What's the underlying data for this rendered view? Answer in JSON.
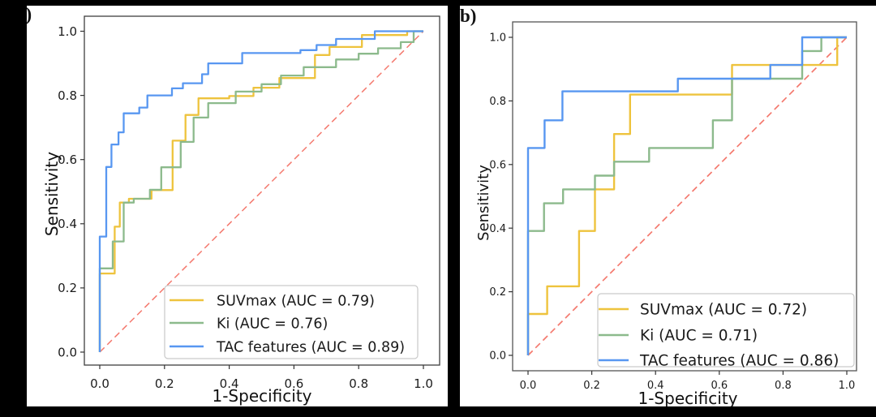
{
  "figure": {
    "background": "#ffffff",
    "letterbox_color": "#000000"
  },
  "chart_data": [
    {
      "type": "line",
      "panel_label": "a)",
      "xlabel": "1-Specificity",
      "ylabel": "Sensitivity",
      "xlim": [
        0,
        1
      ],
      "ylim": [
        0,
        1
      ],
      "grid": false,
      "legend_position": "lower right",
      "xtick_labels": [
        "0.0",
        "0.2",
        "0.4",
        "0.6",
        "0.8",
        "1.0"
      ],
      "ytick_labels": [
        "0.0",
        "0.2",
        "0.4",
        "0.6",
        "0.8",
        "1.0"
      ],
      "tick_values": [
        0,
        0.2,
        0.4,
        0.6,
        0.8,
        1.0
      ],
      "reference_line": {
        "name": "chance-diagonal",
        "style": "dashed",
        "color": "#f4796e",
        "from": [
          0,
          0
        ],
        "to": [
          1,
          1
        ]
      },
      "series": [
        {
          "name": "SUVmax",
          "auc": 0.79,
          "legend_label": "SUVmax (AUC = 0.79)",
          "color": "#eec33d",
          "points": [
            [
              0,
              0
            ],
            [
              0,
              0.245
            ],
            [
              0.046,
              0.245
            ],
            [
              0.046,
              0.391
            ],
            [
              0.062,
              0.391
            ],
            [
              0.062,
              0.466
            ],
            [
              0.09,
              0.466
            ],
            [
              0.09,
              0.478
            ],
            [
              0.16,
              0.478
            ],
            [
              0.16,
              0.505
            ],
            [
              0.225,
              0.505
            ],
            [
              0.225,
              0.659
            ],
            [
              0.265,
              0.659
            ],
            [
              0.265,
              0.739
            ],
            [
              0.305,
              0.739
            ],
            [
              0.305,
              0.791
            ],
            [
              0.4,
              0.791
            ],
            [
              0.4,
              0.798
            ],
            [
              0.475,
              0.798
            ],
            [
              0.475,
              0.824
            ],
            [
              0.555,
              0.824
            ],
            [
              0.555,
              0.854
            ],
            [
              0.665,
              0.854
            ],
            [
              0.665,
              0.926
            ],
            [
              0.71,
              0.926
            ],
            [
              0.71,
              0.951
            ],
            [
              0.81,
              0.951
            ],
            [
              0.81,
              0.988
            ],
            [
              0.95,
              0.988
            ],
            [
              0.95,
              1
            ],
            [
              1,
              1
            ]
          ]
        },
        {
          "name": "Ki",
          "auc": 0.76,
          "legend_label": "Ki (AUC = 0.76)",
          "color": "#8cba8c",
          "points": [
            [
              0,
              0
            ],
            [
              0,
              0.261
            ],
            [
              0.04,
              0.261
            ],
            [
              0.04,
              0.345
            ],
            [
              0.074,
              0.345
            ],
            [
              0.074,
              0.466
            ],
            [
              0.105,
              0.466
            ],
            [
              0.105,
              0.478
            ],
            [
              0.155,
              0.478
            ],
            [
              0.155,
              0.506
            ],
            [
              0.19,
              0.506
            ],
            [
              0.19,
              0.576
            ],
            [
              0.25,
              0.576
            ],
            [
              0.25,
              0.655
            ],
            [
              0.29,
              0.655
            ],
            [
              0.29,
              0.731
            ],
            [
              0.335,
              0.731
            ],
            [
              0.335,
              0.776
            ],
            [
              0.42,
              0.776
            ],
            [
              0.42,
              0.812
            ],
            [
              0.5,
              0.812
            ],
            [
              0.5,
              0.835
            ],
            [
              0.56,
              0.835
            ],
            [
              0.56,
              0.862
            ],
            [
              0.63,
              0.862
            ],
            [
              0.63,
              0.888
            ],
            [
              0.73,
              0.888
            ],
            [
              0.73,
              0.912
            ],
            [
              0.8,
              0.912
            ],
            [
              0.8,
              0.93
            ],
            [
              0.86,
              0.93
            ],
            [
              0.86,
              0.947
            ],
            [
              0.93,
              0.947
            ],
            [
              0.93,
              0.966
            ],
            [
              0.97,
              0.966
            ],
            [
              0.97,
              1
            ],
            [
              1,
              1
            ]
          ]
        },
        {
          "name": "TAC features",
          "auc": 0.89,
          "legend_label": "TAC features (AUC = 0.89)",
          "color": "#5897f1",
          "points": [
            [
              0,
              0
            ],
            [
              0,
              0.36
            ],
            [
              0.02,
              0.36
            ],
            [
              0.02,
              0.577
            ],
            [
              0.036,
              0.577
            ],
            [
              0.036,
              0.647
            ],
            [
              0.058,
              0.647
            ],
            [
              0.058,
              0.685
            ],
            [
              0.074,
              0.685
            ],
            [
              0.074,
              0.744
            ],
            [
              0.122,
              0.744
            ],
            [
              0.122,
              0.762
            ],
            [
              0.147,
              0.762
            ],
            [
              0.147,
              0.8
            ],
            [
              0.223,
              0.8
            ],
            [
              0.223,
              0.822
            ],
            [
              0.257,
              0.822
            ],
            [
              0.257,
              0.838
            ],
            [
              0.316,
              0.838
            ],
            [
              0.316,
              0.866
            ],
            [
              0.335,
              0.866
            ],
            [
              0.335,
              0.9
            ],
            [
              0.44,
              0.9
            ],
            [
              0.44,
              0.932
            ],
            [
              0.62,
              0.932
            ],
            [
              0.62,
              0.941
            ],
            [
              0.67,
              0.941
            ],
            [
              0.67,
              0.957
            ],
            [
              0.73,
              0.957
            ],
            [
              0.73,
              0.976
            ],
            [
              0.85,
              0.976
            ],
            [
              0.85,
              1
            ],
            [
              1,
              1
            ]
          ]
        }
      ]
    },
    {
      "type": "line",
      "panel_label": "b)",
      "xlabel": "1-Specificity",
      "ylabel": "Sensitivity",
      "xlim": [
        0,
        1
      ],
      "ylim": [
        0,
        1
      ],
      "grid": false,
      "legend_position": "lower right",
      "xtick_labels": [
        "0.0",
        "0.2",
        "0.4",
        "0.6",
        "0.8",
        "1.0"
      ],
      "ytick_labels": [
        "0.0",
        "0.2",
        "0.4",
        "0.6",
        "0.8",
        "1.0"
      ],
      "tick_values": [
        0,
        0.2,
        0.4,
        0.6,
        0.8,
        1.0
      ],
      "reference_line": {
        "name": "chance-diagonal",
        "style": "dashed",
        "color": "#f4796e",
        "from": [
          0,
          0
        ],
        "to": [
          1,
          1
        ]
      },
      "series": [
        {
          "name": "SUVmax",
          "auc": 0.72,
          "legend_label": "SUVmax (AUC = 0.72)",
          "color": "#eec33d",
          "points": [
            [
              0,
              0
            ],
            [
              0,
              0.13
            ],
            [
              0.06,
              0.13
            ],
            [
              0.06,
              0.217
            ],
            [
              0.16,
              0.217
            ],
            [
              0.16,
              0.391
            ],
            [
              0.21,
              0.391
            ],
            [
              0.21,
              0.522
            ],
            [
              0.27,
              0.522
            ],
            [
              0.27,
              0.696
            ],
            [
              0.32,
              0.696
            ],
            [
              0.32,
              0.82
            ],
            [
              0.64,
              0.82
            ],
            [
              0.64,
              0.913
            ],
            [
              0.97,
              0.913
            ],
            [
              0.97,
              1
            ],
            [
              1,
              1
            ]
          ]
        },
        {
          "name": "Ki",
          "auc": 0.71,
          "legend_label": "Ki (AUC = 0.71)",
          "color": "#8cba8c",
          "points": [
            [
              0,
              0
            ],
            [
              0,
              0.391
            ],
            [
              0.05,
              0.391
            ],
            [
              0.05,
              0.478
            ],
            [
              0.11,
              0.478
            ],
            [
              0.11,
              0.522
            ],
            [
              0.21,
              0.522
            ],
            [
              0.21,
              0.565
            ],
            [
              0.27,
              0.565
            ],
            [
              0.27,
              0.609
            ],
            [
              0.38,
              0.609
            ],
            [
              0.38,
              0.652
            ],
            [
              0.58,
              0.652
            ],
            [
              0.58,
              0.739
            ],
            [
              0.64,
              0.739
            ],
            [
              0.64,
              0.87
            ],
            [
              0.86,
              0.87
            ],
            [
              0.86,
              0.957
            ],
            [
              0.92,
              0.957
            ],
            [
              0.92,
              1
            ],
            [
              1,
              1
            ]
          ]
        },
        {
          "name": "TAC features",
          "auc": 0.86,
          "legend_label": "TAC features (AUC = 0.86)",
          "color": "#5897f1",
          "points": [
            [
              0,
              0
            ],
            [
              0,
              0.652
            ],
            [
              0.052,
              0.652
            ],
            [
              0.052,
              0.739
            ],
            [
              0.108,
              0.739
            ],
            [
              0.108,
              0.83
            ],
            [
              0.47,
              0.83
            ],
            [
              0.47,
              0.87
            ],
            [
              0.76,
              0.87
            ],
            [
              0.76,
              0.913
            ],
            [
              0.86,
              0.913
            ],
            [
              0.86,
              1
            ],
            [
              1,
              1
            ]
          ]
        }
      ]
    }
  ]
}
